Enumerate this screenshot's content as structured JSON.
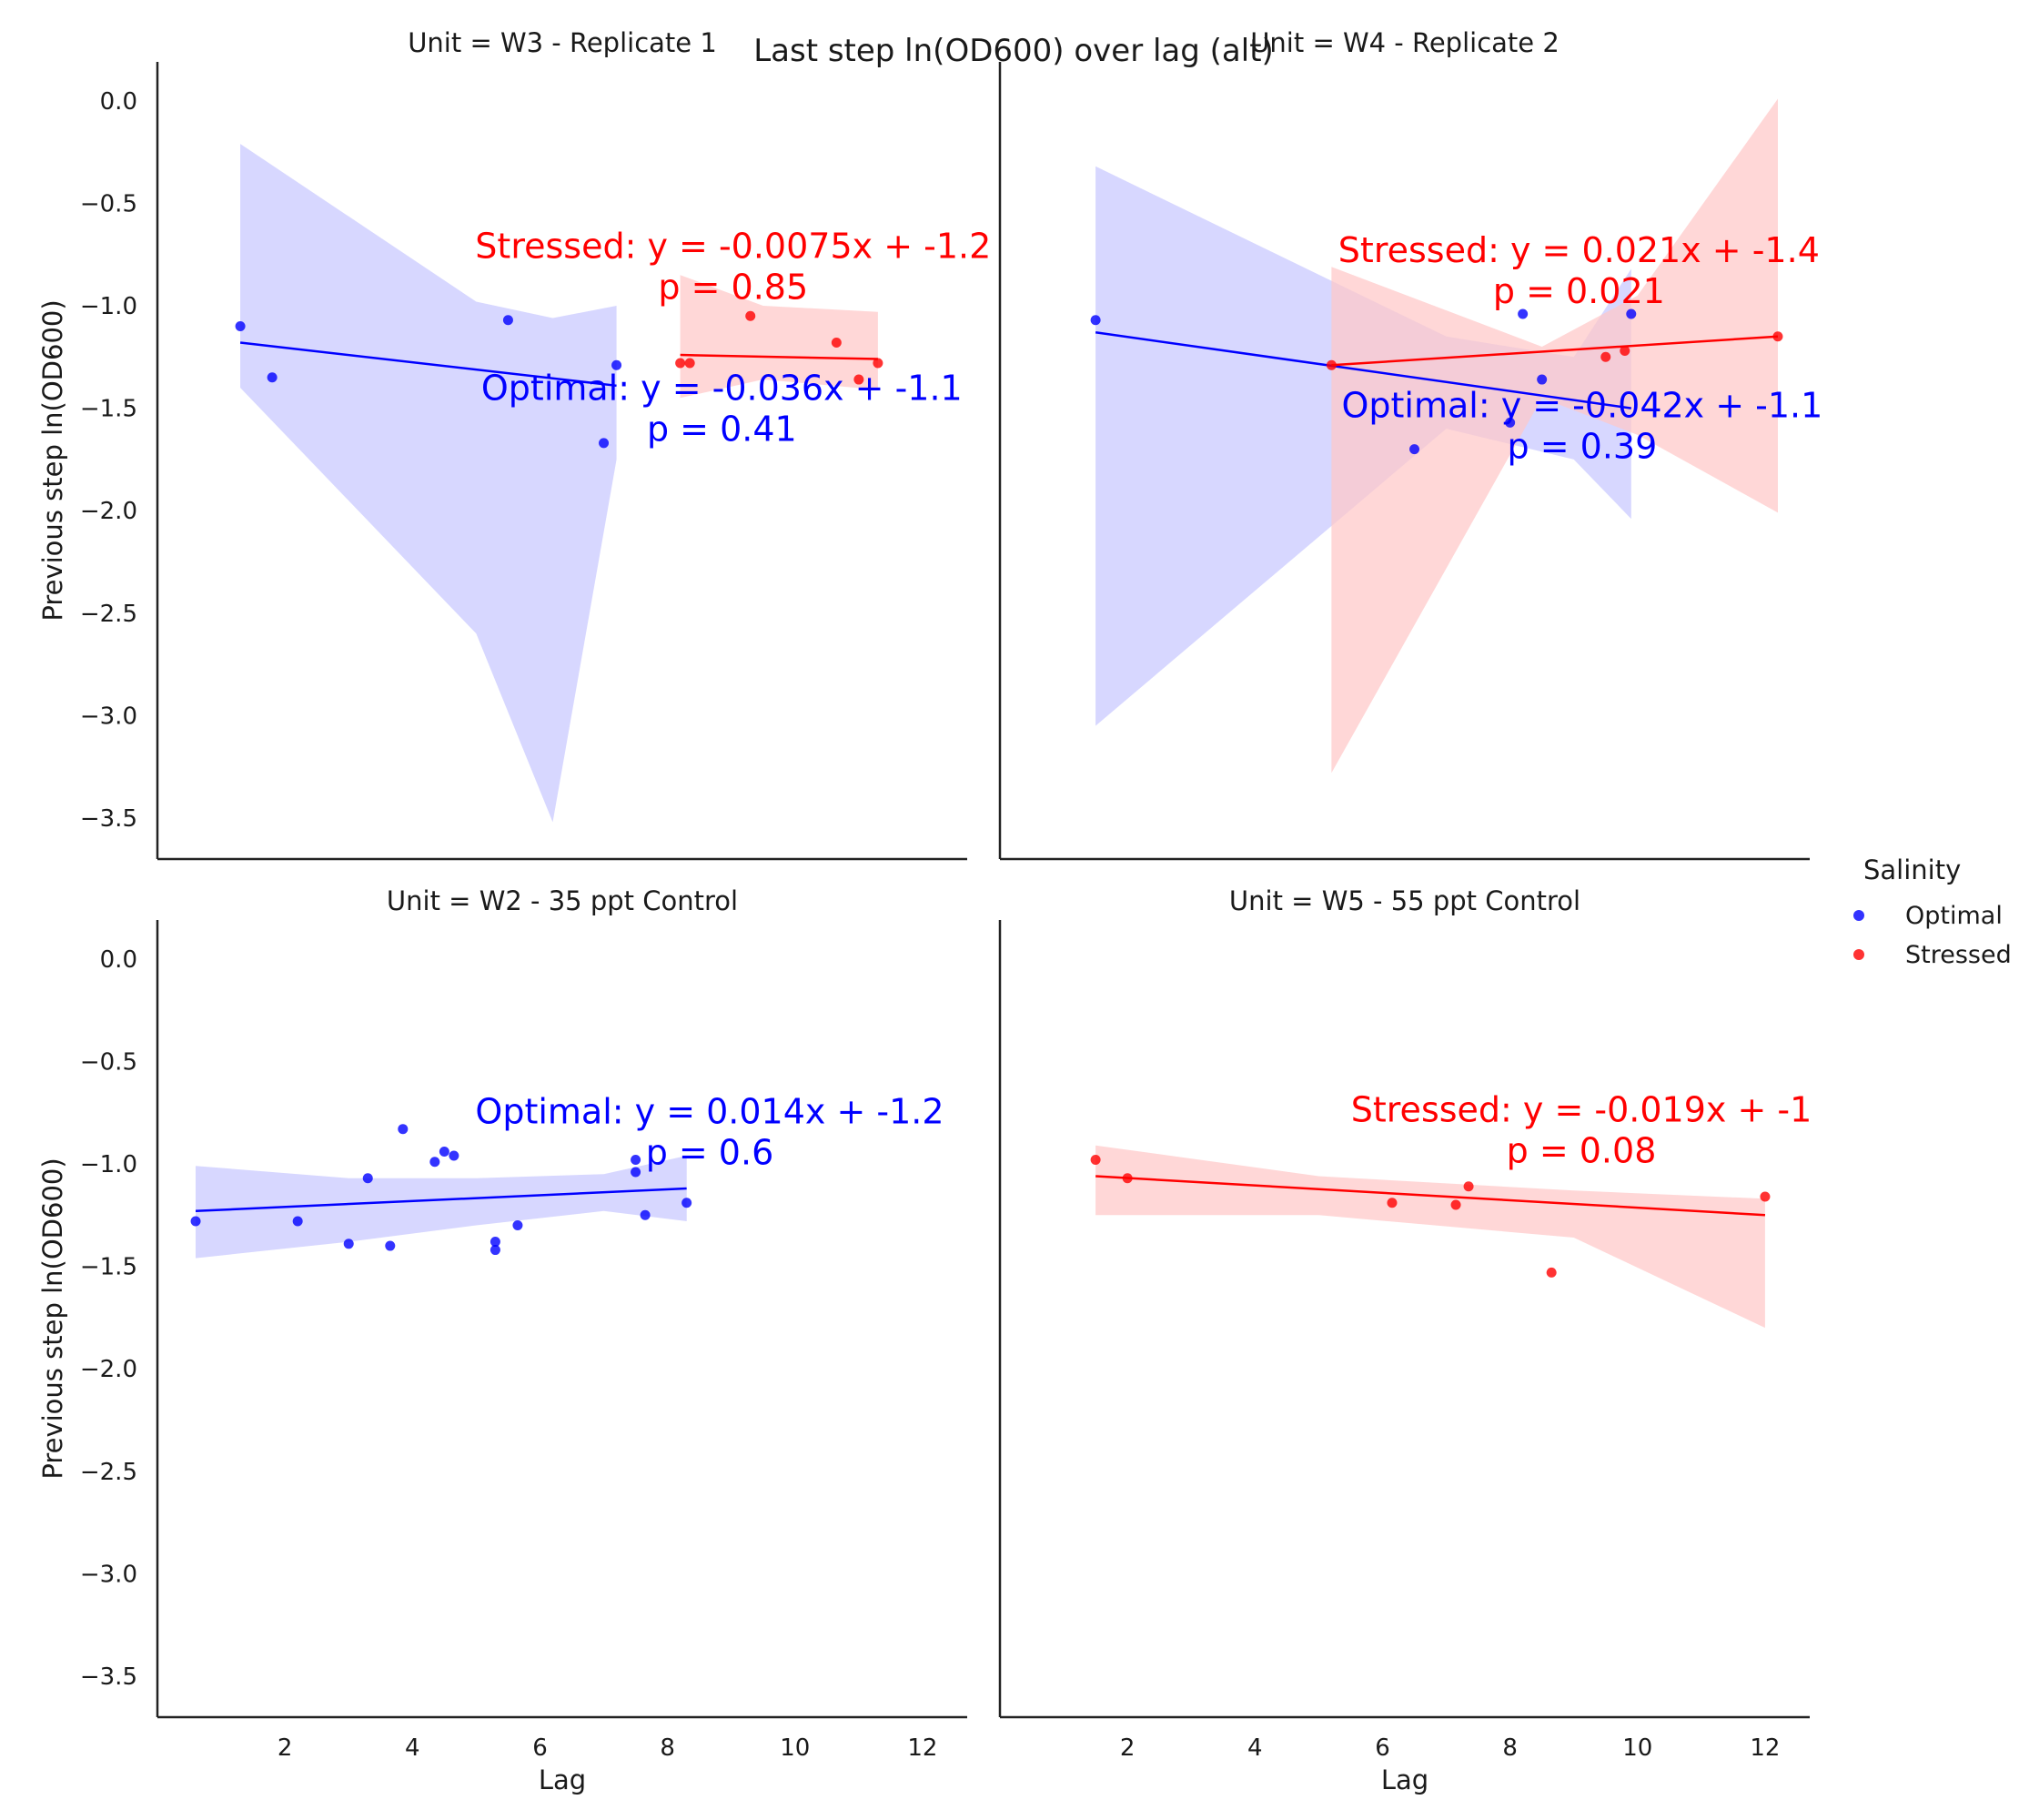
{
  "figure": {
    "title": "Last step ln(OD600) over lag (alt)"
  },
  "legend": {
    "title": "Salinity",
    "entries": [
      {
        "label": "Optimal",
        "color": "#0000ff"
      },
      {
        "label": "Stressed",
        "color": "#ff0000"
      }
    ]
  },
  "colors": {
    "Optimal": "#0000ff",
    "Stressed": "#ff0000",
    "Optimal_band": "#c8c8ff",
    "Stressed_band": "#ffc8c8"
  },
  "chart_data": [
    {
      "type": "scatter",
      "panel": "top-left",
      "title": "Unit = W3 - Replicate 1",
      "xlabel": "",
      "ylabel": "Previous step ln(OD600)",
      "xlim": [
        0,
        12.7
      ],
      "ylim": [
        -3.7,
        0.19
      ],
      "xticks": [
        2,
        4,
        6,
        8,
        10,
        12
      ],
      "yticks": [
        0.0,
        -0.5,
        -1.0,
        -1.5,
        -2.0,
        -2.5,
        -3.0,
        -3.5
      ],
      "show_xticklabels": false,
      "show_yticklabels": true,
      "series": [
        {
          "name": "Optimal",
          "points": [
            [
              1.3,
              -1.1
            ],
            [
              1.8,
              -1.35
            ],
            [
              5.5,
              -1.07
            ],
            [
              7.0,
              -1.67
            ],
            [
              7.2,
              -1.29
            ]
          ],
          "fit": {
            "x": [
              1.3,
              7.2
            ],
            "y": [
              -1.18,
              -1.39
            ]
          },
          "ci": {
            "x": [
              1.3,
              5.0,
              6.2,
              7.2
            ],
            "upper": [
              -0.21,
              -0.98,
              -1.06,
              -1.0
            ],
            "lower": [
              -1.4,
              -2.6,
              -3.52,
              -1.75
            ]
          },
          "annotation": {
            "equation": "Optimal: y = -0.036x + -1.1",
            "p": "p = 0.41"
          }
        },
        {
          "name": "Stressed",
          "points": [
            [
              8.2,
              -1.28
            ],
            [
              8.35,
              -1.28
            ],
            [
              9.3,
              -1.05
            ],
            [
              10.65,
              -1.18
            ],
            [
              11.0,
              -1.36
            ],
            [
              11.3,
              -1.28
            ]
          ],
          "fit": {
            "x": [
              8.2,
              11.3
            ],
            "y": [
              -1.24,
              -1.26
            ]
          },
          "ci": {
            "x": [
              8.2,
              9.5,
              11.3
            ],
            "upper": [
              -0.85,
              -1.0,
              -1.03
            ],
            "lower": [
              -1.45,
              -1.36,
              -1.41
            ]
          },
          "annotation": {
            "equation": "Stressed: y = -0.0075x + -1.2",
            "p": "p = 0.85"
          }
        }
      ]
    },
    {
      "type": "scatter",
      "panel": "top-right",
      "title": "Unit = W4 - Replicate 2",
      "xlabel": "",
      "ylabel": "",
      "xlim": [
        0,
        12.7
      ],
      "ylim": [
        -3.7,
        0.19
      ],
      "xticks": [
        2,
        4,
        6,
        8,
        10,
        12
      ],
      "yticks": [
        0.0,
        -0.5,
        -1.0,
        -1.5,
        -2.0,
        -2.5,
        -3.0,
        -3.5
      ],
      "show_xticklabels": false,
      "show_yticklabels": false,
      "series": [
        {
          "name": "Optimal",
          "points": [
            [
              1.5,
              -1.07
            ],
            [
              6.5,
              -1.7
            ],
            [
              8.0,
              -1.57
            ],
            [
              8.2,
              -1.04
            ],
            [
              8.5,
              -1.36
            ],
            [
              9.9,
              -1.04
            ]
          ],
          "fit": {
            "x": [
              1.5,
              9.9
            ],
            "y": [
              -1.13,
              -1.5
            ]
          },
          "ci": {
            "x": [
              1.5,
              7.0,
              9.0,
              9.9
            ],
            "upper": [
              -0.32,
              -1.15,
              -1.25,
              -0.82
            ],
            "lower": [
              -3.05,
              -1.6,
              -1.75,
              -2.04
            ]
          },
          "annotation": {
            "equation": "Optimal: y = -0.042x + -1.1",
            "p": "p = 0.39"
          }
        },
        {
          "name": "Stressed",
          "points": [
            [
              5.2,
              -1.29
            ],
            [
              9.5,
              -1.25
            ],
            [
              9.8,
              -1.22
            ],
            [
              12.2,
              -1.15
            ]
          ],
          "fit": {
            "x": [
              5.2,
              12.2
            ],
            "y": [
              -1.29,
              -1.15
            ]
          },
          "ci": {
            "x": [
              5.2,
              8.5,
              10.0,
              12.2
            ],
            "upper": [
              -0.81,
              -1.2,
              -0.95,
              0.01
            ],
            "lower": [
              -3.28,
              -1.45,
              -1.63,
              -2.01
            ]
          },
          "annotation": {
            "equation": "Stressed: y = 0.021x + -1.4",
            "p": "p = 0.021"
          }
        }
      ]
    },
    {
      "type": "scatter",
      "panel": "bottom-left",
      "title": "Unit = W2 - 35 ppt Control",
      "xlabel": "Lag",
      "ylabel": "Previous step ln(OD600)",
      "xlim": [
        0,
        12.7
      ],
      "ylim": [
        -3.7,
        0.19
      ],
      "xticks": [
        2,
        4,
        6,
        8,
        10,
        12
      ],
      "yticks": [
        0.0,
        -0.5,
        -1.0,
        -1.5,
        -2.0,
        -2.5,
        -3.0,
        -3.5
      ],
      "show_xticklabels": true,
      "show_yticklabels": true,
      "series": [
        {
          "name": "Optimal",
          "points": [
            [
              0.6,
              -1.28
            ],
            [
              2.2,
              -1.28
            ],
            [
              3.0,
              -1.39
            ],
            [
              3.3,
              -1.07
            ],
            [
              3.65,
              -1.4
            ],
            [
              3.85,
              -0.83
            ],
            [
              4.35,
              -0.99
            ],
            [
              4.5,
              -0.94
            ],
            [
              4.65,
              -0.96
            ],
            [
              5.3,
              -1.42
            ],
            [
              5.3,
              -1.38
            ],
            [
              5.65,
              -1.3
            ],
            [
              7.5,
              -0.98
            ],
            [
              7.5,
              -1.04
            ],
            [
              7.65,
              -1.25
            ],
            [
              8.3,
              -1.19
            ]
          ],
          "fit": {
            "x": [
              0.6,
              8.3
            ],
            "y": [
              -1.23,
              -1.12
            ]
          },
          "ci": {
            "x": [
              0.6,
              3.0,
              5.0,
              7.0,
              8.3
            ],
            "upper": [
              -1.01,
              -1.07,
              -1.07,
              -1.05,
              -0.96
            ],
            "lower": [
              -1.46,
              -1.38,
              -1.3,
              -1.23,
              -1.28
            ]
          },
          "annotation": {
            "equation": "Optimal: y = 0.014x + -1.2",
            "p": "p = 0.6"
          }
        }
      ]
    },
    {
      "type": "scatter",
      "panel": "bottom-right",
      "title": "Unit = W5 - 55 ppt Control",
      "xlabel": "Lag",
      "ylabel": "",
      "xlim": [
        0,
        12.7
      ],
      "ylim": [
        -3.7,
        0.19
      ],
      "xticks": [
        2,
        4,
        6,
        8,
        10,
        12
      ],
      "yticks": [
        0.0,
        -0.5,
        -1.0,
        -1.5,
        -2.0,
        -2.5,
        -3.0,
        -3.5
      ],
      "show_xticklabels": true,
      "show_yticklabels": false,
      "series": [
        {
          "name": "Stressed",
          "points": [
            [
              1.5,
              -0.98
            ],
            [
              2.0,
              -1.07
            ],
            [
              6.15,
              -1.19
            ],
            [
              7.15,
              -1.2
            ],
            [
              7.35,
              -1.11
            ],
            [
              8.65,
              -1.53
            ],
            [
              12.0,
              -1.16
            ]
          ],
          "fit": {
            "x": [
              1.5,
              12.0
            ],
            "y": [
              -1.06,
              -1.25
            ]
          },
          "ci": {
            "x": [
              1.5,
              5.0,
              9.0,
              12.0
            ],
            "upper": [
              -0.91,
              -1.06,
              -1.13,
              -1.17
            ],
            "lower": [
              -1.25,
              -1.25,
              -1.36,
              -1.8
            ]
          },
          "annotation": {
            "equation": "Stressed: y = -0.019x + -1",
            "p": "p = 0.08"
          }
        }
      ]
    }
  ]
}
